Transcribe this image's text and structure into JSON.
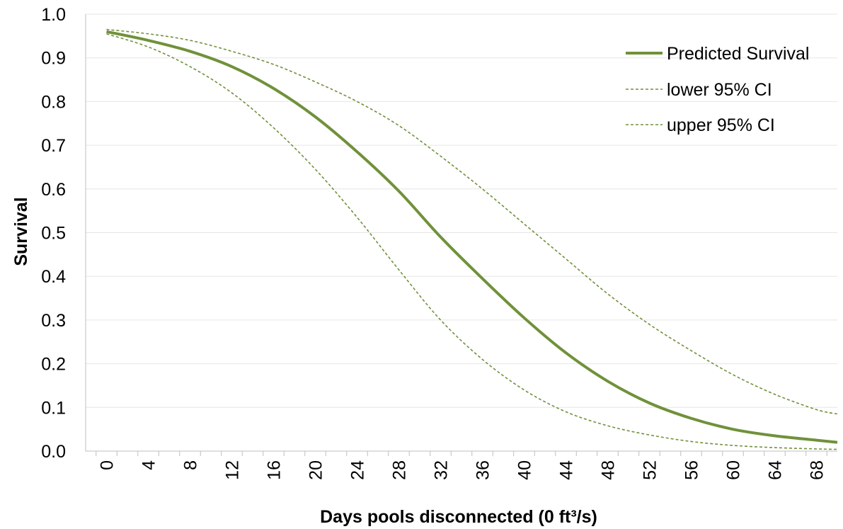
{
  "chart_data": {
    "type": "line",
    "xlabel": "Days pools disconnected (0 ft³/s)",
    "ylabel": "Survival",
    "ylim": [
      0,
      1.0
    ],
    "xlim": [
      -2,
      70
    ],
    "x_ticks": [
      0,
      4,
      8,
      12,
      16,
      20,
      24,
      28,
      32,
      36,
      40,
      44,
      48,
      52,
      56,
      60,
      64,
      68
    ],
    "y_ticks": [
      0.0,
      0.1,
      0.2,
      0.3,
      0.4,
      0.5,
      0.6,
      0.7,
      0.8,
      0.9,
      1.0
    ],
    "grid": "horizontal",
    "legend_position": "top-right",
    "x": [
      0,
      4,
      8,
      12,
      16,
      20,
      24,
      28,
      32,
      36,
      40,
      44,
      48,
      52,
      56,
      60,
      64,
      68,
      70
    ],
    "series": [
      {
        "name": "Predicted Survival",
        "style": "solid",
        "color": "#70913a",
        "values": [
          0.96,
          0.94,
          0.915,
          0.88,
          0.83,
          0.765,
          0.685,
          0.595,
          0.49,
          0.395,
          0.305,
          0.225,
          0.16,
          0.11,
          0.075,
          0.05,
          0.035,
          0.025,
          0.02
        ]
      },
      {
        "name": "lower 95% CI",
        "style": "dashed",
        "color": "#70913a",
        "values": [
          0.955,
          0.925,
          0.88,
          0.82,
          0.74,
          0.645,
          0.535,
          0.415,
          0.3,
          0.21,
          0.14,
          0.09,
          0.058,
          0.037,
          0.022,
          0.013,
          0.008,
          0.005,
          0.004
        ]
      },
      {
        "name": "upper 95% CI",
        "style": "dashed",
        "color": "#70913a",
        "values": [
          0.965,
          0.955,
          0.94,
          0.915,
          0.885,
          0.845,
          0.8,
          0.745,
          0.675,
          0.6,
          0.52,
          0.44,
          0.36,
          0.29,
          0.23,
          0.175,
          0.13,
          0.095,
          0.085
        ]
      }
    ]
  }
}
